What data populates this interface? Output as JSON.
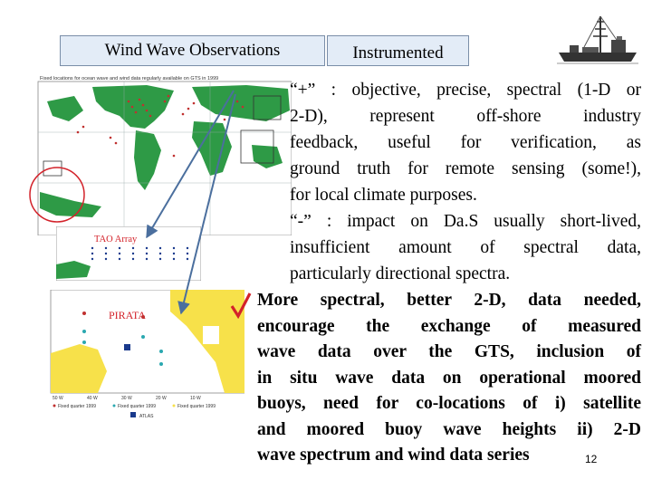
{
  "header": {
    "title": "Wind Wave Observations",
    "tab": "Instrumented"
  },
  "maps": {
    "top_caption": "Fixed locations for ocean wave and wind data regularly available on GTS in 1999",
    "tao_label": "TAO Array",
    "pirata_label": "PIRATA",
    "legend": [
      "Fixed quarter 1999",
      "Fixed quarter 1999",
      "Fixed quarter 1999",
      "ATLAS"
    ]
  },
  "body": {
    "para1_lines": [
      "“+” : objective, precise, spectral (1-D or",
      "2-D), represent off-shore industry",
      "feedback, useful for verification, as",
      "ground truth for remote sensing (some!),",
      "for local climate purposes."
    ],
    "para2_lines": [
      "“-” : impact on Da.S usually short-lived,",
      "insufficient amount of spectral data,",
      "particularly directional spectra."
    ],
    "para3_lines": [
      "More spectral, better 2-D, data needed,",
      "encourage the exchange of measured",
      "wave data over the GTS, inclusion of",
      "in situ wave data on operational moored",
      "buoys, need for co-locations of i) satellite",
      "and moored buoy wave heights ii) 2-D",
      "wave spectrum and wind data series"
    ],
    "page_number": "12"
  },
  "colors": {
    "box_fill": "#e3ecf7",
    "land": "#2e9a46",
    "ocean": "#ffffff",
    "pirata_land": "#f7e14a",
    "arrow": "#4b6f9e",
    "check": "#d3222a",
    "buoy": "#c0302f"
  }
}
